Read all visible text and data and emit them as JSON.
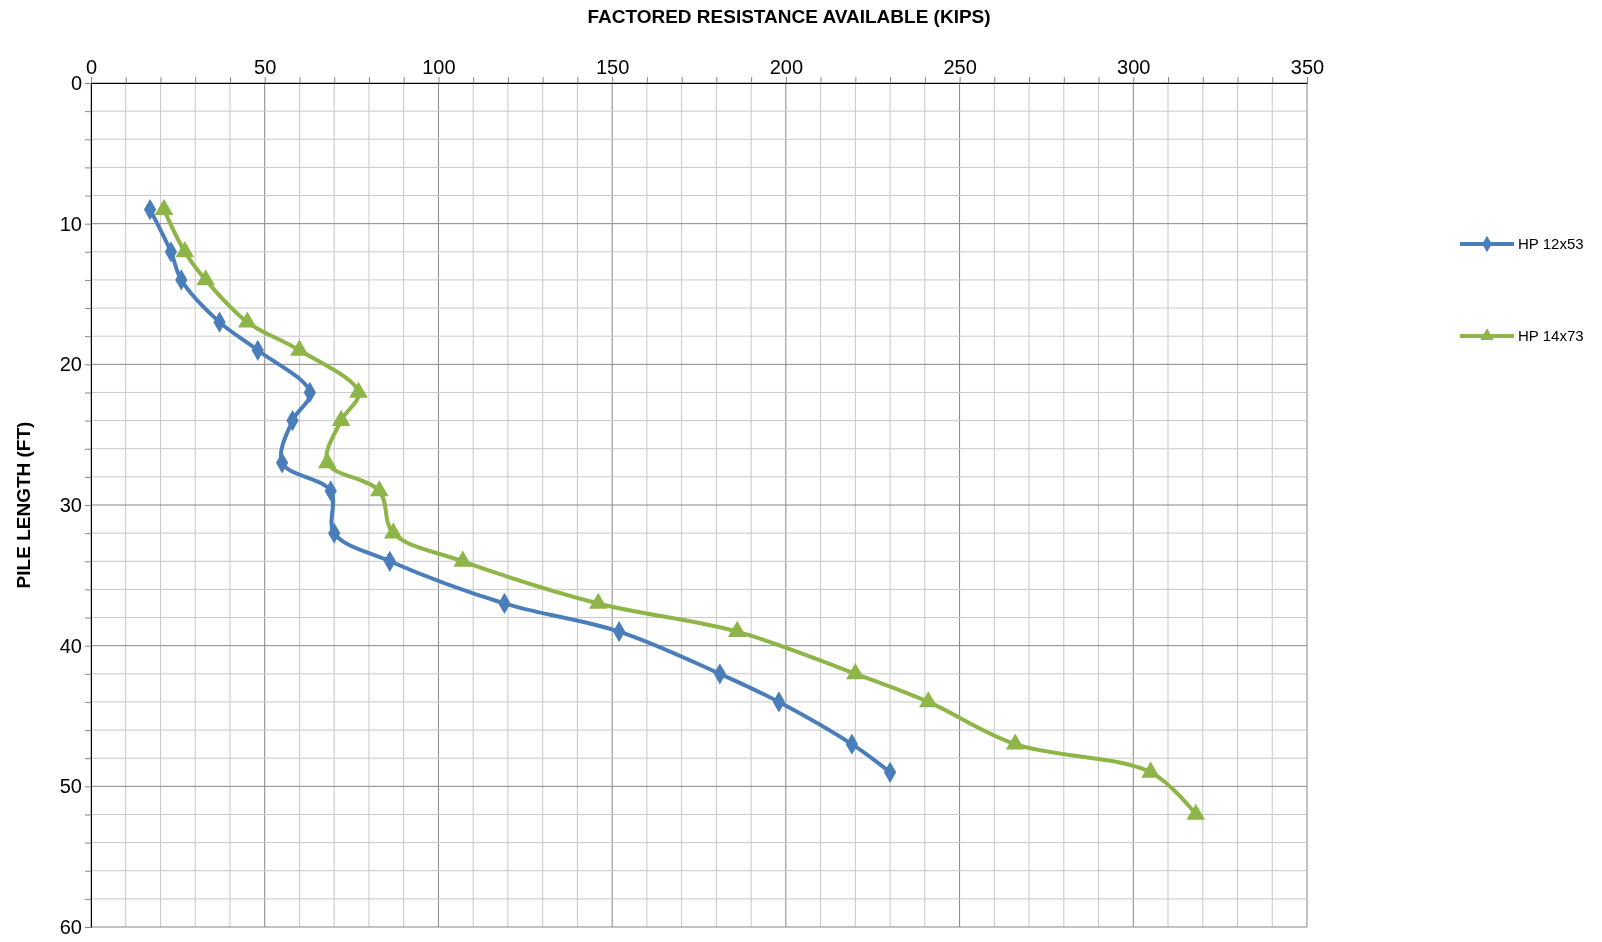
{
  "chart_data": {
    "type": "line",
    "title": "FACTORED RESISTANCE AVAILABLE (KIPS)",
    "ylabel": "PILE LENGTH (FT)",
    "xlim": [
      0,
      350
    ],
    "ylim": [
      60,
      0
    ],
    "xticks": [
      0,
      {
        "value": 10,
        "label": null
      },
      {
        "value": 20,
        "label": null
      },
      {
        "value": 30,
        "label": null
      },
      {
        "value": 40,
        "label": null
      },
      50,
      {
        "value": 60,
        "label": null
      },
      {
        "value": 70,
        "label": null
      },
      {
        "value": 80,
        "label": null
      },
      {
        "value": 90,
        "label": null
      },
      100,
      {
        "value": 110,
        "label": null
      },
      {
        "value": 120,
        "label": null
      },
      {
        "value": 130,
        "label": null
      },
      {
        "value": 140,
        "label": null
      },
      150,
      {
        "value": 160,
        "label": null
      },
      {
        "value": 170,
        "label": null
      },
      {
        "value": 180,
        "label": null
      },
      {
        "value": 190,
        "label": null
      },
      200,
      {
        "value": 210,
        "label": null
      },
      {
        "value": 220,
        "label": null
      },
      {
        "value": 230,
        "label": null
      },
      {
        "value": 240,
        "label": null
      },
      250,
      {
        "value": 260,
        "label": null
      },
      {
        "value": 270,
        "label": null
      },
      {
        "value": 280,
        "label": null
      },
      {
        "value": 290,
        "label": null
      },
      300,
      {
        "value": 310,
        "label": null
      },
      {
        "value": 320,
        "label": null
      },
      {
        "value": 330,
        "label": null
      },
      {
        "value": 340,
        "label": null
      },
      350
    ],
    "yticks": [
      0,
      {
        "value": 2,
        "label": null
      },
      {
        "value": 4,
        "label": null
      },
      {
        "value": 6,
        "label": null
      },
      {
        "value": 8,
        "label": null
      },
      10,
      {
        "value": 12,
        "label": null
      },
      {
        "value": 14,
        "label": null
      },
      {
        "value": 16,
        "label": null
      },
      {
        "value": 18,
        "label": null
      },
      20,
      {
        "value": 22,
        "label": null
      },
      {
        "value": 24,
        "label": null
      },
      {
        "value": 26,
        "label": null
      },
      {
        "value": 28,
        "label": null
      },
      30,
      {
        "value": 32,
        "label": null
      },
      {
        "value": 34,
        "label": null
      },
      {
        "value": 36,
        "label": null
      },
      {
        "value": 38,
        "label": null
      },
      40,
      {
        "value": 42,
        "label": null
      },
      {
        "value": 44,
        "label": null
      },
      {
        "value": 46,
        "label": null
      },
      {
        "value": 48,
        "label": null
      },
      50,
      {
        "value": 52,
        "label": null
      },
      {
        "value": 54,
        "label": null
      },
      {
        "value": 56,
        "label": null
      },
      {
        "value": 58,
        "label": null
      },
      60
    ],
    "grid": true,
    "legend": "right",
    "line_style": "solid",
    "series": [
      {
        "name": "HP 12x53",
        "color": "#4a7ebb",
        "marker": "diamond",
        "x": [
          17,
          23,
          26,
          37,
          48,
          63,
          58,
          55,
          69,
          70,
          86,
          119,
          152,
          181,
          198,
          219,
          230
        ],
        "values": [
          9,
          12,
          14,
          17,
          19,
          22,
          24,
          27,
          29,
          32,
          34,
          37,
          39,
          42,
          44,
          47,
          49
        ]
      },
      {
        "name": "HP 14x73",
        "color": "#8db548",
        "marker": "triangle",
        "x": [
          21,
          27,
          33,
          45,
          60,
          77,
          72,
          68,
          83,
          87,
          107,
          146,
          186,
          220,
          241,
          266,
          305,
          318
        ],
        "values": [
          9,
          12,
          14,
          17,
          19,
          22,
          24,
          27,
          29,
          32,
          34,
          37,
          39,
          42,
          44,
          47,
          49,
          52
        ]
      }
    ]
  }
}
